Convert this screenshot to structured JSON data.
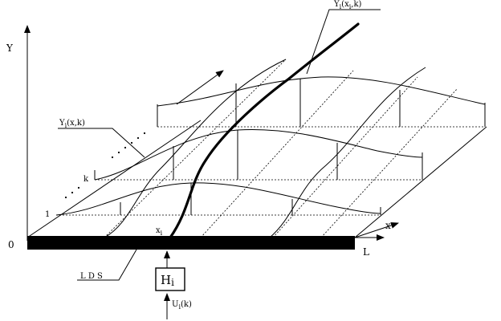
{
  "labels": {
    "y_axis": "Y",
    "x_axis": "x",
    "origin": "0",
    "length": "L",
    "lds": "L D S",
    "x_i": "x",
    "x_i_sub": "i",
    "operator": "H",
    "operator_sub": "i",
    "input": "U",
    "input_sub": "i",
    "input_arg": "(k)",
    "family_curve": "Y",
    "family_curve_sub": "i",
    "family_curve_arg": "(x,k)",
    "point_curve": "Y",
    "point_curve_sub": "i",
    "point_curve_arg": "(x",
    "point_curve_sub2": "i",
    "point_curve_arg2": ",k)",
    "step_1": "1",
    "step_k": "k"
  }
}
